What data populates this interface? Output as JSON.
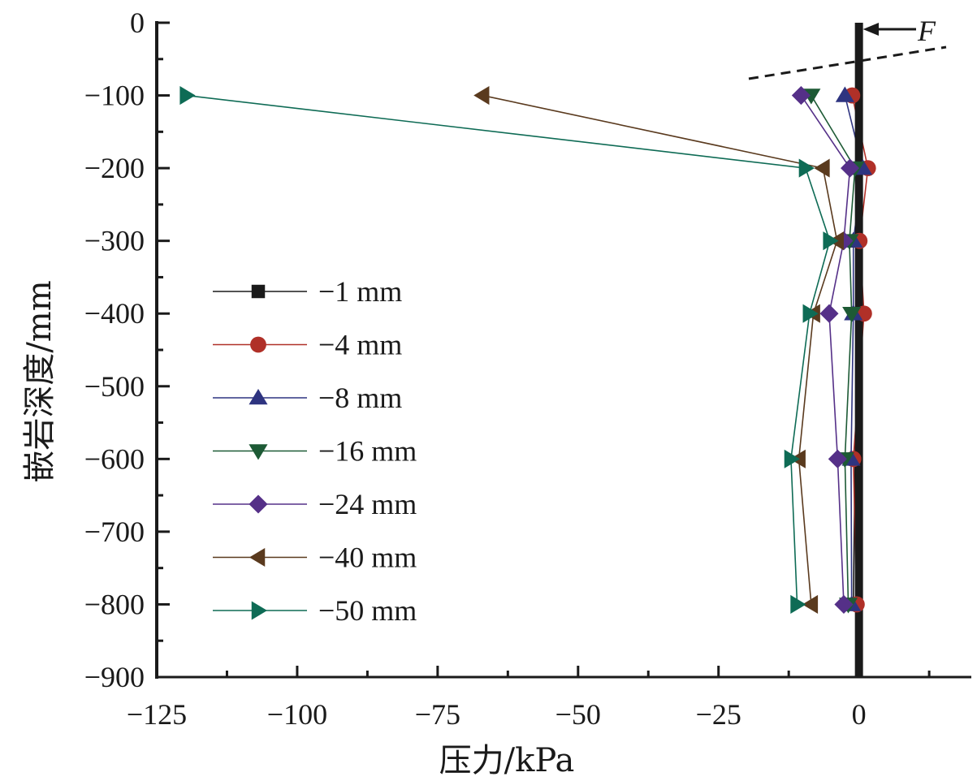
{
  "chart_data": {
    "type": "line",
    "title": "",
    "xlabel": "压力/kPa",
    "ylabel": "嵌岩深度/mm",
    "xlim": [
      -125,
      20
    ],
    "ylim": [
      -900,
      0
    ],
    "x_ticks": [
      -125,
      -100,
      -75,
      -50,
      -25,
      0
    ],
    "x_tick_labels": [
      "−125",
      "−100",
      "−75",
      "−50",
      "−25",
      "0"
    ],
    "x_minor_ticks": [
      -112.5,
      -87.5,
      -62.5,
      -37.5,
      -12.5,
      12.5
    ],
    "y_ticks": [
      0,
      -100,
      -200,
      -300,
      -400,
      -500,
      -600,
      -700,
      -800,
      -900
    ],
    "y_tick_labels": [
      "0",
      "−100",
      "−200",
      "−300",
      "−400",
      "−500",
      "−600",
      "−700",
      "−800",
      "−900"
    ],
    "y_minor_ticks": [
      -50,
      -150,
      -250,
      -350,
      -450,
      -550,
      -650,
      -750,
      -850
    ],
    "grid": false,
    "legend_position": "left-middle",
    "depths": [
      -100,
      -200,
      -300,
      -400,
      -600,
      -800
    ],
    "series": [
      {
        "name": "−1 mm",
        "color": "#1a1a1a",
        "marker": "square",
        "values": [
          -0.5,
          -0.3,
          -0.3,
          0.0,
          -0.7,
          -1.0
        ]
      },
      {
        "name": "−4 mm",
        "color": "#b03028",
        "marker": "circle",
        "values": [
          -1.2,
          1.6,
          0.1,
          0.9,
          -1.0,
          -0.4
        ]
      },
      {
        "name": "−8 mm",
        "color": "#2e3480",
        "marker": "triangle-up",
        "values": [
          -2.5,
          0.7,
          -1.0,
          -1.0,
          -1.4,
          -1.3
        ]
      },
      {
        "name": "−16 mm",
        "color": "#1d5a35",
        "marker": "triangle-down",
        "values": [
          -8.5,
          -0.7,
          -1.7,
          -1.3,
          -2.5,
          -1.9
        ]
      },
      {
        "name": "−24 mm",
        "color": "#553088",
        "marker": "diamond",
        "values": [
          -10.3,
          -1.6,
          -2.7,
          -5.3,
          -3.8,
          -2.7
        ]
      },
      {
        "name": "−40 mm",
        "color": "#5a3a1e",
        "marker": "triangle-left",
        "values": [
          -67.0,
          -6.4,
          -3.9,
          -8.1,
          -10.7,
          -8.5
        ]
      },
      {
        "name": "−50 mm",
        "color": "#0e6b55",
        "marker": "triangle-right",
        "values": [
          -119.7,
          -9.5,
          -5.2,
          -8.8,
          -12.1,
          -11.0
        ]
      }
    ],
    "annotations": {
      "force_label": "F",
      "pile_position_kpa": 0,
      "pile_color": "#1a1a1a"
    }
  }
}
